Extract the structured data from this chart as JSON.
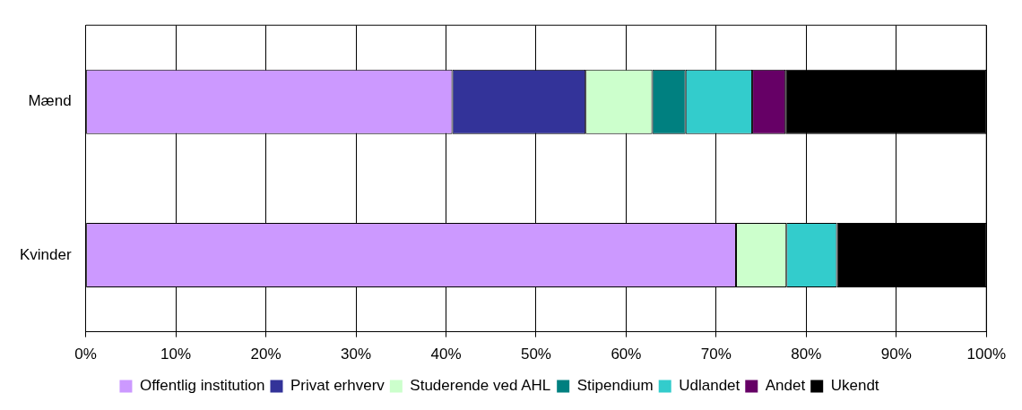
{
  "chart_data": {
    "type": "bar",
    "orientation": "horizontal",
    "stacked": true,
    "categories": [
      "Mænd",
      "Kvinder"
    ],
    "series": [
      {
        "name": "Offentlig institution",
        "color": "#cc99ff",
        "values": [
          40.7,
          72.2
        ]
      },
      {
        "name": "Privat erhverv",
        "color": "#333399",
        "values": [
          14.8,
          0
        ]
      },
      {
        "name": "Studerende ved AHL",
        "color": "#ccffcc",
        "values": [
          7.4,
          5.6
        ]
      },
      {
        "name": "Stipendium",
        "color": "#008080",
        "values": [
          3.7,
          0
        ]
      },
      {
        "name": "Udlandet",
        "color": "#33cccc",
        "values": [
          7.4,
          5.6
        ]
      },
      {
        "name": "Andet",
        "color": "#660066",
        "values": [
          3.7,
          0
        ]
      },
      {
        "name": "Ukendt",
        "color": "#000000",
        "values": [
          22.3,
          16.6
        ]
      }
    ],
    "xlim": [
      0,
      100
    ],
    "xticks": [
      {
        "value": 0,
        "label": "0%"
      },
      {
        "value": 10,
        "label": "10%"
      },
      {
        "value": 20,
        "label": "20%"
      },
      {
        "value": 30,
        "label": "30%"
      },
      {
        "value": 40,
        "label": "40%"
      },
      {
        "value": 50,
        "label": "50%"
      },
      {
        "value": 60,
        "label": "60%"
      },
      {
        "value": 70,
        "label": "70%"
      },
      {
        "value": 80,
        "label": "80%"
      },
      {
        "value": 90,
        "label": "90%"
      },
      {
        "value": 100,
        "label": "100%"
      }
    ],
    "grid": "x",
    "legend": "bottom"
  }
}
